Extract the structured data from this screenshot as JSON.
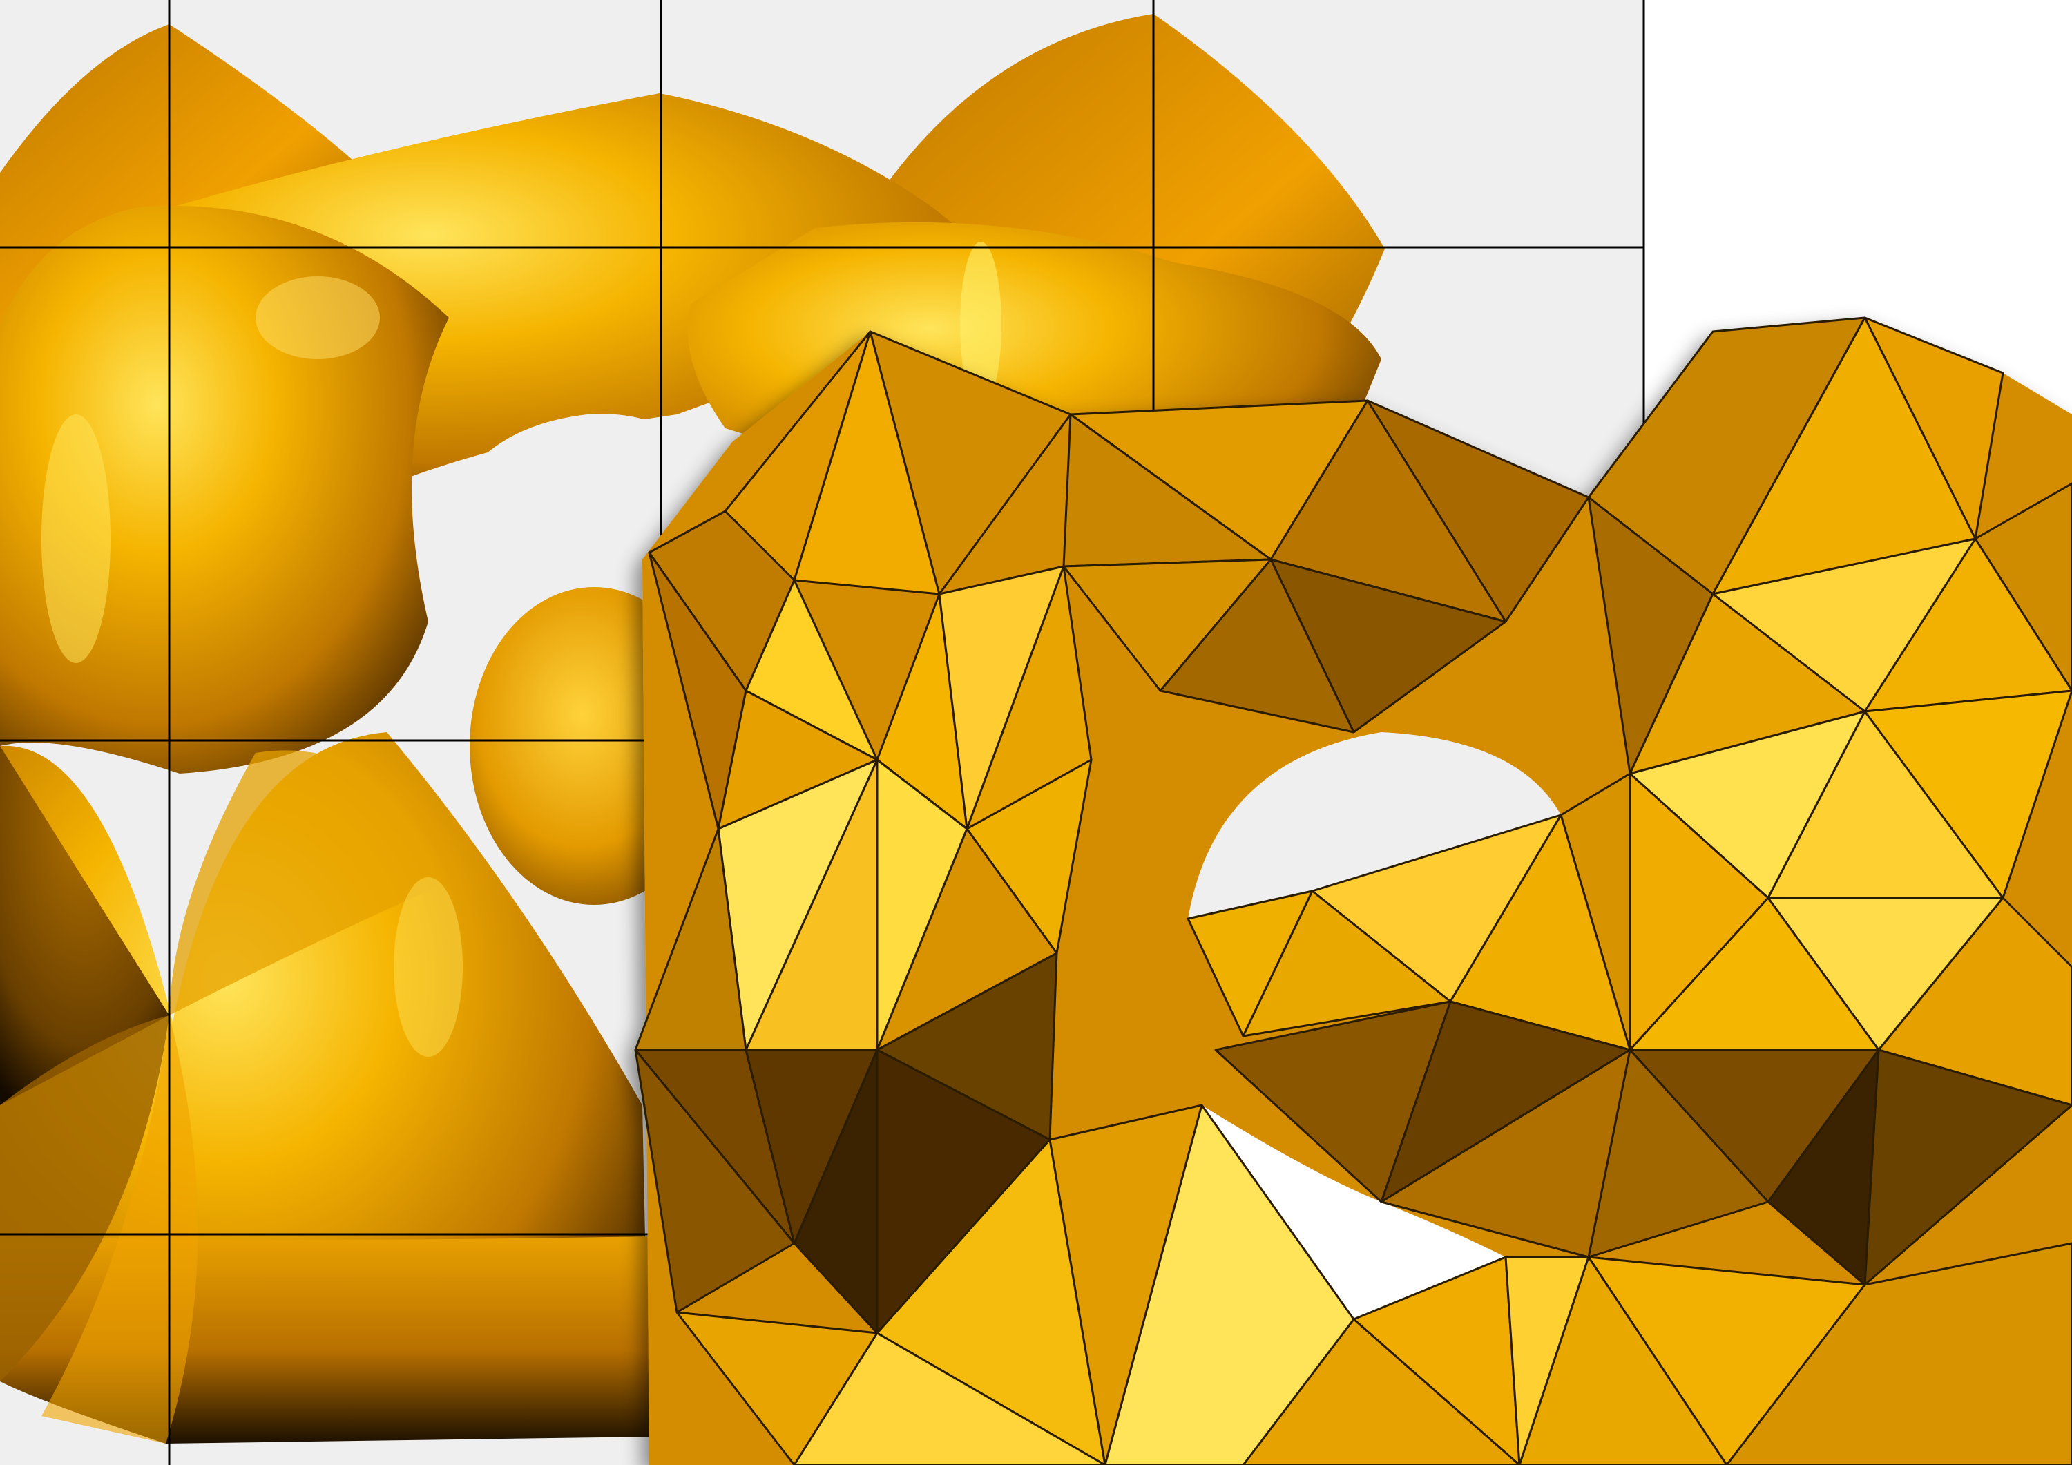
{
  "scene": {
    "description_icon": "implicit-surface-vs-mesh-icon",
    "colors": {
      "background": "#ffffff",
      "grid_panel": "#efefef",
      "grid_line": "#000000",
      "gold_light": "#ffe45a",
      "gold_mid": "#f0a000",
      "gold_dark": "#8a5600",
      "gold_shadow": "#2a1800",
      "mesh_edge": "#2a1a00"
    }
  }
}
